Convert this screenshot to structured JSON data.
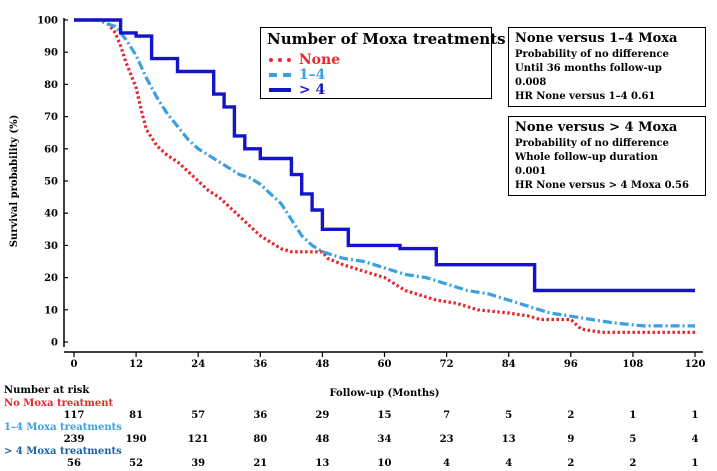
{
  "chart_data": {
    "type": "line",
    "subtype": "kaplan-meier",
    "xlabel": "Follow-up (Months)",
    "ylabel": "Survival probability (%)",
    "xlim": [
      0,
      120
    ],
    "ylim": [
      0,
      100
    ],
    "xticks": [
      0,
      12,
      24,
      36,
      48,
      60,
      72,
      84,
      96,
      108,
      120
    ],
    "yticks": [
      0,
      10,
      20,
      30,
      40,
      50,
      60,
      70,
      80,
      90,
      100
    ],
    "legend_title": "Number of Moxa treatments",
    "series": [
      {
        "name": "None",
        "color": "#e8262b",
        "style": "dotted",
        "points": [
          [
            0,
            100
          ],
          [
            6,
            100
          ],
          [
            7,
            98
          ],
          [
            8,
            96
          ],
          [
            9,
            92
          ],
          [
            10,
            87
          ],
          [
            11,
            83
          ],
          [
            12,
            79
          ],
          [
            13,
            72
          ],
          [
            14,
            66
          ],
          [
            16,
            61
          ],
          [
            18,
            58
          ],
          [
            20,
            56
          ],
          [
            22,
            53
          ],
          [
            24,
            50
          ],
          [
            26,
            47
          ],
          [
            28,
            45
          ],
          [
            30,
            42
          ],
          [
            32,
            39
          ],
          [
            34,
            36
          ],
          [
            36,
            33
          ],
          [
            38,
            31
          ],
          [
            40,
            29
          ],
          [
            42,
            28
          ],
          [
            48,
            28
          ],
          [
            49,
            26
          ],
          [
            52,
            24
          ],
          [
            56,
            22
          ],
          [
            60,
            20
          ],
          [
            62,
            18
          ],
          [
            64,
            16
          ],
          [
            68,
            14
          ],
          [
            70,
            13
          ],
          [
            74,
            12
          ],
          [
            78,
            10
          ],
          [
            84,
            9
          ],
          [
            88,
            8
          ],
          [
            90,
            7
          ],
          [
            96,
            7
          ],
          [
            98,
            4
          ],
          [
            102,
            3
          ],
          [
            110,
            3
          ],
          [
            120,
            3
          ]
        ]
      },
      {
        "name": "1–4",
        "color": "#3b9fe3",
        "style": "dash-dot",
        "points": [
          [
            0,
            100
          ],
          [
            5,
            100
          ],
          [
            6,
            99
          ],
          [
            8,
            98
          ],
          [
            10,
            94
          ],
          [
            12,
            89
          ],
          [
            14,
            82
          ],
          [
            16,
            76
          ],
          [
            18,
            71
          ],
          [
            20,
            67
          ],
          [
            22,
            63
          ],
          [
            24,
            60
          ],
          [
            26,
            58
          ],
          [
            28,
            56
          ],
          [
            30,
            54
          ],
          [
            32,
            52
          ],
          [
            34,
            51
          ],
          [
            36,
            49
          ],
          [
            38,
            46
          ],
          [
            40,
            43
          ],
          [
            42,
            38
          ],
          [
            44,
            33
          ],
          [
            46,
            30
          ],
          [
            48,
            28
          ],
          [
            52,
            26
          ],
          [
            56,
            25
          ],
          [
            60,
            23
          ],
          [
            64,
            21
          ],
          [
            68,
            20
          ],
          [
            72,
            18
          ],
          [
            76,
            16
          ],
          [
            80,
            15
          ],
          [
            84,
            13
          ],
          [
            88,
            11
          ],
          [
            92,
            9
          ],
          [
            96,
            8
          ],
          [
            100,
            7
          ],
          [
            104,
            6
          ],
          [
            110,
            5
          ],
          [
            120,
            5
          ]
        ]
      },
      {
        "name": "> 4",
        "color": "#1414c8",
        "style": "solid",
        "points": [
          [
            0,
            100
          ],
          [
            9,
            100
          ],
          [
            9,
            96
          ],
          [
            12,
            96
          ],
          [
            12,
            95
          ],
          [
            15,
            95
          ],
          [
            15,
            88
          ],
          [
            20,
            88
          ],
          [
            20,
            84
          ],
          [
            27,
            84
          ],
          [
            27,
            77
          ],
          [
            29,
            77
          ],
          [
            29,
            73
          ],
          [
            31,
            73
          ],
          [
            31,
            64
          ],
          [
            33,
            64
          ],
          [
            33,
            60
          ],
          [
            36,
            60
          ],
          [
            36,
            57
          ],
          [
            42,
            57
          ],
          [
            42,
            52
          ],
          [
            44,
            52
          ],
          [
            44,
            46
          ],
          [
            46,
            46
          ],
          [
            46,
            41
          ],
          [
            48,
            41
          ],
          [
            48,
            35
          ],
          [
            53,
            35
          ],
          [
            53,
            30
          ],
          [
            63,
            30
          ],
          [
            63,
            29
          ],
          [
            70,
            29
          ],
          [
            70,
            24
          ],
          [
            89,
            24
          ],
          [
            89,
            16
          ],
          [
            120,
            16
          ]
        ]
      }
    ],
    "annotations": [
      {
        "title": "None versus 1–4 Moxa",
        "lines": [
          "Probability of no difference",
          "Until 36 months follow-up",
          "0.008",
          "HR None versus 1–4 0.61"
        ]
      },
      {
        "title": "None versus > 4 Moxa",
        "lines": [
          "Probability of no difference",
          "Whole follow-up duration",
          "0.001",
          "HR None versus > 4 Moxa 0.56"
        ]
      }
    ],
    "risk_table": {
      "title": "Number at risk",
      "times": [
        0,
        12,
        24,
        36,
        48,
        60,
        72,
        84,
        96,
        108,
        120
      ],
      "rows": [
        {
          "label": "No Moxa treatment",
          "color": "#e8262b",
          "values": [
            "117",
            "81",
            "57",
            "36",
            "29",
            "15",
            "7",
            "5",
            "2",
            "1",
            "1"
          ]
        },
        {
          "label": "1–4 Moxa treatments",
          "color": "#3b9fe3",
          "values": [
            "239",
            "190",
            "121",
            "80",
            "48",
            "34",
            "23",
            "13",
            "9",
            "5",
            "4"
          ]
        },
        {
          "label": "> 4 Moxa treatments",
          "color": "#1a5fa8",
          "values": [
            "56",
            "52",
            "39",
            "21",
            "13",
            "10",
            "4",
            "4",
            "2",
            "2",
            "1"
          ]
        }
      ]
    }
  }
}
